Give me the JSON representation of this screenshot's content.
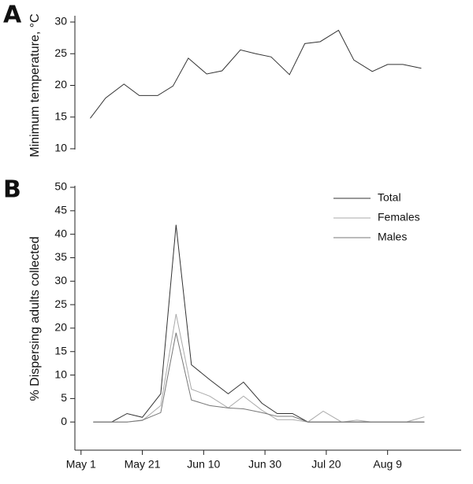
{
  "chart_data": [
    {
      "type": "line",
      "panel_label": "A",
      "ylabel": "Minimum temperature, °C",
      "x": [
        3,
        8,
        14,
        19,
        25,
        30,
        35,
        41,
        46,
        52,
        57,
        62,
        68,
        73,
        78,
        84,
        89,
        95,
        100,
        105,
        111
      ],
      "xlim": [
        -2,
        124
      ],
      "ylim": [
        10,
        30
      ],
      "yticks": [
        10,
        15,
        20,
        25,
        30
      ],
      "series": [
        {
          "name": null,
          "color": "#333333",
          "values": [
            14.8,
            18.0,
            20.2,
            18.4,
            18.4,
            19.9,
            24.3,
            21.8,
            22.3,
            25.6,
            25.0,
            24.5,
            21.7,
            26.6,
            26.9,
            28.7,
            24.0,
            22.2,
            23.3,
            23.3,
            22.7
          ]
        }
      ]
    },
    {
      "type": "line",
      "panel_label": "B",
      "ylabel": "% Dispersing adults collected",
      "x": [
        4,
        10,
        15,
        20,
        26,
        31,
        36,
        42,
        48,
        53,
        59,
        64,
        69,
        74,
        79,
        85,
        90,
        95,
        101,
        106,
        112
      ],
      "xlim": [
        -2,
        124
      ],
      "xticks": [
        {
          "value": 0,
          "label": "May 1"
        },
        {
          "value": 20,
          "label": "May 21"
        },
        {
          "value": 40,
          "label": "Jun 10"
        },
        {
          "value": 60,
          "label": "Jun 30"
        },
        {
          "value": 80,
          "label": "Jul 20"
        },
        {
          "value": 100,
          "label": "Aug 9"
        }
      ],
      "ylim": [
        -6,
        50
      ],
      "yticks": [
        0,
        5,
        10,
        15,
        20,
        25,
        30,
        35,
        40,
        45,
        50
      ],
      "legend": "upper right",
      "series": [
        {
          "name": "Total",
          "color": "#333333",
          "values": [
            0,
            0,
            1.8,
            1.0,
            6,
            42,
            12.2,
            9,
            6,
            8.5,
            4,
            1.8,
            1.8,
            0,
            0,
            0,
            0,
            0,
            0,
            0,
            0
          ]
        },
        {
          "name": "Females",
          "color": "#aaaaaa",
          "values": [
            0,
            0,
            0,
            0.3,
            3.5,
            23,
            7,
            5.5,
            3,
            5.5,
            2.5,
            0.5,
            0.5,
            0,
            2.3,
            0,
            0.4,
            0,
            0,
            0,
            1.1
          ]
        },
        {
          "name": "Males",
          "color": "#777777",
          "values": [
            0,
            0,
            0,
            0.4,
            2,
            19,
            4.7,
            3.5,
            3,
            2.8,
            2,
            1.2,
            1.2,
            0,
            0,
            0,
            0,
            0,
            0,
            0,
            0
          ]
        }
      ]
    }
  ]
}
